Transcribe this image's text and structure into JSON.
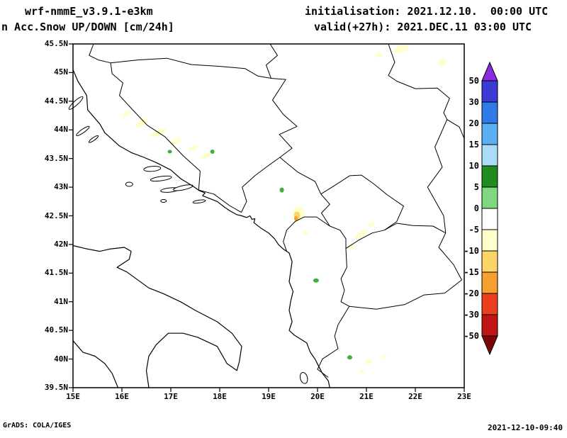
{
  "header": {
    "model": "wrf-nmmE_v3.9.1-e3km",
    "product": "n Acc.Snow UP/DOWN [cm/24h]",
    "init": "initialisation: 2021.12.10.  00:00 UTC",
    "valid": "valid(+27h): 2021.DEC.11 03:00 UTC"
  },
  "footer": {
    "left": "GrADS: COLA/IGES",
    "right": "2021-12-10-09:40"
  },
  "chart_data": {
    "type": "map",
    "projection": "latlon",
    "lon_range": [
      15,
      23
    ],
    "lat_range": [
      39.5,
      45.5
    ],
    "lat_tick_labels": [
      "45.5N",
      "45N",
      "44.5N",
      "44N",
      "43.5N",
      "43N",
      "42.5N",
      "42N",
      "41.5N",
      "41N",
      "40.5N",
      "40N",
      "39.5N"
    ],
    "lon_tick_labels": [
      "15E",
      "16E",
      "17E",
      "18E",
      "19E",
      "20E",
      "21E",
      "22E",
      "23E"
    ],
    "colorbar": {
      "units": "cm/24h",
      "tick_labels": [
        "50",
        "30",
        "20",
        "15",
        "10",
        "5",
        "0",
        "-5",
        "-10",
        "-15",
        "-20",
        "-30",
        "-50"
      ],
      "top_triangle_color": "#8a2be2",
      "bottom_triangle_color": "#7c0606",
      "band_colors": [
        "#3b3bd6",
        "#2f7ae6",
        "#5ab0f2",
        "#aadcf8",
        "#1e8c1e",
        "#7fd87f",
        "#ffffff",
        "#ffffcb",
        "#fcd468",
        "#f6a12f",
        "#ec3f1f",
        "#c11414"
      ]
    },
    "palette": {
      "pale": "#ffffcb",
      "yellow": "#fcd468",
      "orange": "#f6a12f",
      "green": "#3fae3f"
    },
    "snow_patches": [
      {
        "lon": 21.72,
        "lat": 45.42,
        "rx": 11,
        "ry": 5,
        "rot": -15,
        "color": "pale"
      },
      {
        "lon": 22.55,
        "lat": 45.18,
        "rx": 7,
        "ry": 4,
        "rot": -20,
        "color": "pale"
      },
      {
        "lon": 21.25,
        "lat": 45.3,
        "rx": 5,
        "ry": 3,
        "rot": 0,
        "color": "pale"
      },
      {
        "lon": 16.1,
        "lat": 44.28,
        "rx": 7,
        "ry": 3,
        "rot": -35,
        "color": "pale"
      },
      {
        "lon": 16.4,
        "lat": 44.12,
        "rx": 10,
        "ry": 4,
        "rot": -30,
        "color": "pale"
      },
      {
        "lon": 16.75,
        "lat": 43.95,
        "rx": 12,
        "ry": 4,
        "rot": -25,
        "color": "pale"
      },
      {
        "lon": 17.1,
        "lat": 43.8,
        "rx": 8,
        "ry": 3.5,
        "rot": -25,
        "color": "pale"
      },
      {
        "lon": 17.45,
        "lat": 43.68,
        "rx": 7,
        "ry": 3,
        "rot": -20,
        "color": "pale"
      },
      {
        "lon": 17.72,
        "lat": 43.55,
        "rx": 8,
        "ry": 3.5,
        "rot": -20,
        "color": "pale"
      },
      {
        "lon": 16.98,
        "lat": 43.62,
        "rx": 3,
        "ry": 2.5,
        "rot": 0,
        "color": "green"
      },
      {
        "lon": 17.85,
        "lat": 43.62,
        "rx": 3,
        "ry": 3,
        "rot": 0,
        "color": "green"
      },
      {
        "lon": 19.27,
        "lat": 42.95,
        "rx": 3,
        "ry": 3.5,
        "rot": 0,
        "color": "green"
      },
      {
        "lon": 19.62,
        "lat": 42.55,
        "rx": 8,
        "ry": 10,
        "rot": 0,
        "color": "pale"
      },
      {
        "lon": 19.58,
        "lat": 42.5,
        "rx": 4.5,
        "ry": 6,
        "rot": 0,
        "color": "yellow"
      },
      {
        "lon": 19.56,
        "lat": 42.45,
        "rx": 2.5,
        "ry": 3.5,
        "rot": 0,
        "color": "orange"
      },
      {
        "lon": 19.75,
        "lat": 42.2,
        "rx": 4,
        "ry": 3,
        "rot": 0,
        "color": "pale"
      },
      {
        "lon": 20.9,
        "lat": 42.18,
        "rx": 11,
        "ry": 4,
        "rot": -35,
        "color": "pale"
      },
      {
        "lon": 20.68,
        "lat": 41.95,
        "rx": 6,
        "ry": 4,
        "rot": -35,
        "color": "pale"
      },
      {
        "lon": 21.1,
        "lat": 42.35,
        "rx": 5,
        "ry": 3,
        "rot": -20,
        "color": "pale"
      },
      {
        "lon": 19.97,
        "lat": 41.37,
        "rx": 4,
        "ry": 3,
        "rot": 0,
        "color": "green"
      },
      {
        "lon": 20.66,
        "lat": 40.03,
        "rx": 3.5,
        "ry": 3,
        "rot": 0,
        "color": "green"
      },
      {
        "lon": 21.05,
        "lat": 39.95,
        "rx": 6,
        "ry": 3,
        "rot": -10,
        "color": "pale"
      },
      {
        "lon": 20.9,
        "lat": 39.78,
        "rx": 4,
        "ry": 2.5,
        "rot": 0,
        "color": "pale"
      },
      {
        "lon": 21.35,
        "lat": 40.05,
        "rx": 4,
        "ry": 2.5,
        "rot": 0,
        "color": "pale"
      }
    ],
    "basemap": {
      "coastlines": [
        [
          [
            15.0,
            45.05
          ],
          [
            15.1,
            44.85
          ],
          [
            15.28,
            44.6
          ],
          [
            15.3,
            44.35
          ],
          [
            15.55,
            44.1
          ],
          [
            15.65,
            43.95
          ],
          [
            15.95,
            43.72
          ],
          [
            16.2,
            43.6
          ],
          [
            16.45,
            43.52
          ],
          [
            16.7,
            43.43
          ],
          [
            17.0,
            43.3
          ],
          [
            17.2,
            43.15
          ],
          [
            17.45,
            43.02
          ],
          [
            17.58,
            42.94
          ],
          [
            17.7,
            42.9
          ],
          [
            17.65,
            42.85
          ],
          [
            17.95,
            42.75
          ],
          [
            18.1,
            42.65
          ],
          [
            18.22,
            42.58
          ],
          [
            18.35,
            42.52
          ],
          [
            18.45,
            42.5
          ],
          [
            18.55,
            42.47
          ],
          [
            18.62,
            42.5
          ],
          [
            18.66,
            42.44
          ],
          [
            18.72,
            42.45
          ],
          [
            18.7,
            42.38
          ],
          [
            18.85,
            42.28
          ],
          [
            19.0,
            42.2
          ],
          [
            19.12,
            42.1
          ],
          [
            19.2,
            42.0
          ],
          [
            19.3,
            41.92
          ],
          [
            19.42,
            41.85
          ],
          [
            19.48,
            41.7
          ],
          [
            19.45,
            41.52
          ],
          [
            19.42,
            41.35
          ],
          [
            19.5,
            41.18
          ],
          [
            19.45,
            41.0
          ],
          [
            19.42,
            40.85
          ],
          [
            19.48,
            40.65
          ],
          [
            19.42,
            40.5
          ],
          [
            19.52,
            40.42
          ],
          [
            19.78,
            40.28
          ],
          [
            19.85,
            40.12
          ],
          [
            19.95,
            40.0
          ],
          [
            20.02,
            39.88
          ],
          [
            20.1,
            39.75
          ],
          [
            20.22,
            39.62
          ],
          [
            20.25,
            39.5
          ]
        ],
        [
          [
            15.0,
            41.98
          ],
          [
            15.3,
            41.92
          ],
          [
            15.55,
            41.88
          ],
          [
            15.75,
            41.92
          ],
          [
            16.05,
            41.95
          ],
          [
            16.19,
            41.88
          ],
          [
            16.15,
            41.74
          ],
          [
            15.9,
            41.6
          ],
          [
            16.1,
            41.52
          ],
          [
            16.55,
            41.24
          ],
          [
            16.85,
            41.14
          ],
          [
            17.2,
            41.0
          ],
          [
            17.5,
            40.85
          ],
          [
            17.95,
            40.65
          ],
          [
            18.25,
            40.45
          ],
          [
            18.45,
            40.22
          ],
          [
            18.4,
            39.95
          ],
          [
            18.35,
            39.8
          ],
          [
            18.15,
            39.92
          ],
          [
            17.95,
            40.22
          ],
          [
            17.55,
            40.38
          ],
          [
            17.25,
            40.45
          ],
          [
            16.95,
            40.45
          ],
          [
            16.7,
            40.25
          ],
          [
            16.55,
            40.05
          ],
          [
            16.5,
            39.8
          ],
          [
            16.55,
            39.5
          ]
        ],
        [
          [
            15.0,
            40.32
          ],
          [
            15.2,
            40.12
          ],
          [
            15.45,
            40.05
          ],
          [
            15.65,
            39.92
          ],
          [
            15.8,
            39.75
          ],
          [
            15.92,
            39.5
          ]
        ]
      ],
      "borders": [
        [
          [
            15.42,
            45.5
          ],
          [
            15.33,
            45.3
          ],
          [
            15.52,
            45.22
          ],
          [
            15.77,
            45.17
          ]
        ],
        [
          [
            15.77,
            45.17
          ],
          [
            15.8,
            44.98
          ],
          [
            16.02,
            44.82
          ],
          [
            15.95,
            44.6
          ],
          [
            16.22,
            44.35
          ],
          [
            16.52,
            44.08
          ],
          [
            16.88,
            43.88
          ],
          [
            17.25,
            43.55
          ],
          [
            17.6,
            43.28
          ],
          [
            17.57,
            42.95
          ]
        ],
        [
          [
            17.57,
            42.95
          ],
          [
            17.88,
            42.88
          ],
          [
            18.2,
            42.68
          ],
          [
            18.44,
            42.56
          ]
        ],
        [
          [
            15.77,
            45.17
          ],
          [
            16.32,
            45.22
          ],
          [
            16.92,
            45.25
          ],
          [
            17.42,
            45.14
          ],
          [
            17.98,
            45.11
          ],
          [
            18.52,
            45.07
          ],
          [
            18.78,
            44.94
          ],
          [
            19.05,
            44.9
          ]
        ],
        [
          [
            19.03,
            45.5
          ],
          [
            19.18,
            45.3
          ],
          [
            18.95,
            45.13
          ],
          [
            19.05,
            44.9
          ]
        ],
        [
          [
            19.05,
            44.9
          ],
          [
            19.35,
            44.88
          ],
          [
            19.08,
            44.52
          ],
          [
            19.3,
            44.27
          ],
          [
            19.58,
            44.06
          ],
          [
            19.22,
            43.92
          ],
          [
            19.48,
            43.68
          ],
          [
            19.23,
            43.52
          ]
        ],
        [
          [
            18.44,
            42.56
          ],
          [
            18.55,
            42.75
          ],
          [
            18.46,
            43.0
          ],
          [
            18.72,
            43.2
          ],
          [
            19.0,
            43.38
          ],
          [
            19.23,
            43.52
          ]
        ],
        [
          [
            19.23,
            43.52
          ],
          [
            19.6,
            43.26
          ],
          [
            19.95,
            43.1
          ],
          [
            20.07,
            42.88
          ]
        ],
        [
          [
            20.07,
            42.88
          ],
          [
            20.35,
            43.03
          ],
          [
            20.66,
            43.2
          ],
          [
            20.9,
            43.21
          ],
          [
            21.16,
            43.05
          ],
          [
            21.42,
            42.87
          ],
          [
            21.76,
            42.67
          ],
          [
            21.62,
            42.4
          ],
          [
            21.37,
            42.25
          ]
        ],
        [
          [
            20.58,
            41.93
          ],
          [
            20.85,
            42.08
          ],
          [
            21.12,
            42.2
          ],
          [
            21.37,
            42.25
          ],
          [
            21.62,
            42.37
          ],
          [
            21.95,
            42.33
          ],
          [
            22.36,
            42.32
          ],
          [
            22.62,
            42.2
          ]
        ],
        [
          [
            22.62,
            42.2
          ],
          [
            22.48,
            41.95
          ],
          [
            22.78,
            41.65
          ],
          [
            22.95,
            41.38
          ]
        ],
        [
          [
            20.65,
            40.92
          ],
          [
            21.2,
            40.87
          ],
          [
            21.78,
            40.95
          ],
          [
            22.18,
            41.12
          ],
          [
            22.6,
            41.15
          ],
          [
            22.95,
            41.38
          ]
        ],
        [
          [
            20.07,
            42.88
          ],
          [
            20.25,
            42.7
          ],
          [
            20.08,
            42.55
          ],
          [
            20.25,
            42.32
          ]
        ],
        [
          [
            20.25,
            42.32
          ],
          [
            19.98,
            42.48
          ],
          [
            19.73,
            42.48
          ],
          [
            19.54,
            42.4
          ],
          [
            19.37,
            42.25
          ],
          [
            19.3,
            42.05
          ],
          [
            19.37,
            41.88
          ]
        ],
        [
          [
            20.25,
            42.32
          ],
          [
            20.46,
            42.25
          ],
          [
            20.58,
            42.1
          ],
          [
            20.58,
            41.93
          ]
        ],
        [
          [
            20.58,
            41.93
          ],
          [
            20.6,
            41.6
          ],
          [
            20.48,
            41.4
          ],
          [
            20.55,
            41.2
          ],
          [
            20.48,
            41.0
          ],
          [
            20.65,
            40.92
          ]
        ],
        [
          [
            20.65,
            40.92
          ],
          [
            20.42,
            40.6
          ],
          [
            20.35,
            40.4
          ],
          [
            20.42,
            40.18
          ],
          [
            20.1,
            40.0
          ],
          [
            20.0,
            39.82
          ],
          [
            20.22,
            39.68
          ]
        ],
        [
          [
            21.45,
            45.5
          ],
          [
            21.58,
            45.18
          ],
          [
            21.45,
            44.95
          ],
          [
            21.62,
            44.85
          ],
          [
            22.0,
            44.72
          ],
          [
            22.45,
            44.73
          ],
          [
            22.7,
            44.55
          ],
          [
            22.58,
            44.3
          ],
          [
            22.65,
            44.18
          ],
          [
            22.4,
            43.7
          ],
          [
            22.55,
            43.35
          ],
          [
            22.25,
            43.0
          ],
          [
            22.58,
            42.5
          ],
          [
            22.62,
            42.2
          ]
        ],
        [
          [
            22.65,
            44.18
          ],
          [
            22.9,
            44.05
          ],
          [
            23.0,
            43.85
          ]
        ]
      ],
      "islands": [
        {
          "lon": 15.06,
          "lat": 44.47,
          "rx": 13,
          "ry": 3,
          "rot": -42
        },
        {
          "lon": 15.2,
          "lat": 43.98,
          "rx": 11,
          "ry": 2.5,
          "rot": -35
        },
        {
          "lon": 15.42,
          "lat": 43.84,
          "rx": 8,
          "ry": 2,
          "rot": -35
        },
        {
          "lon": 16.62,
          "lat": 43.32,
          "rx": 12,
          "ry": 3.5,
          "rot": -5
        },
        {
          "lon": 16.8,
          "lat": 43.15,
          "rx": 15,
          "ry": 3,
          "rot": -8
        },
        {
          "lon": 16.15,
          "lat": 43.05,
          "rx": 5,
          "ry": 3,
          "rot": 0
        },
        {
          "lon": 16.98,
          "lat": 42.95,
          "rx": 13,
          "ry": 3,
          "rot": -6
        },
        {
          "lon": 17.25,
          "lat": 42.99,
          "rx": 14,
          "ry": 3,
          "rot": -12
        },
        {
          "lon": 17.58,
          "lat": 42.75,
          "rx": 9,
          "ry": 2,
          "rot": -8
        },
        {
          "lon": 16.85,
          "lat": 42.76,
          "rx": 4,
          "ry": 2,
          "rot": 0
        },
        {
          "lon": 19.72,
          "lat": 39.67,
          "rx": 5,
          "ry": 8,
          "rot": -15
        }
      ]
    }
  }
}
